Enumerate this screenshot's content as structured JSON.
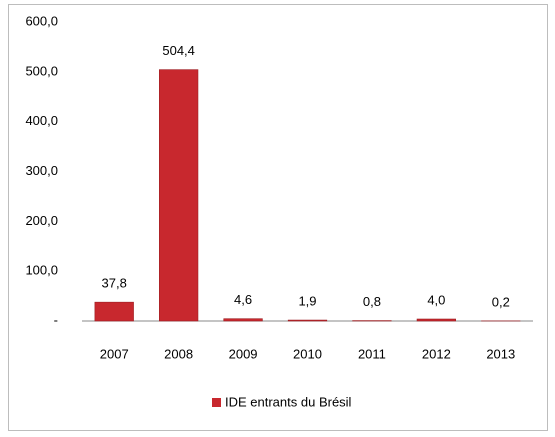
{
  "chart_data": {
    "type": "bar",
    "categories": [
      "2007",
      "2008",
      "2009",
      "2010",
      "2011",
      "2012",
      "2013"
    ],
    "series": [
      {
        "name": "IDE entrants du Brésil",
        "color": "#c8282e",
        "values": [
          37.8,
          504.4,
          4.6,
          1.9,
          0.8,
          4.0,
          0.2
        ],
        "value_labels": [
          "37,8",
          "504,4",
          "4,6",
          "1,9",
          "0,8",
          "4,0",
          "0,2"
        ]
      }
    ],
    "ylim": [
      0,
      600
    ],
    "yticks": [
      {
        "value": 0,
        "label": "-"
      },
      {
        "value": 100,
        "label": "100,0"
      },
      {
        "value": 200,
        "label": "200,0"
      },
      {
        "value": 300,
        "label": "300,0"
      },
      {
        "value": 400,
        "label": "400,0"
      },
      {
        "value": 500,
        "label": "500,0"
      },
      {
        "value": 600,
        "label": "600,0"
      }
    ],
    "grid": false,
    "legend": "bottom"
  }
}
